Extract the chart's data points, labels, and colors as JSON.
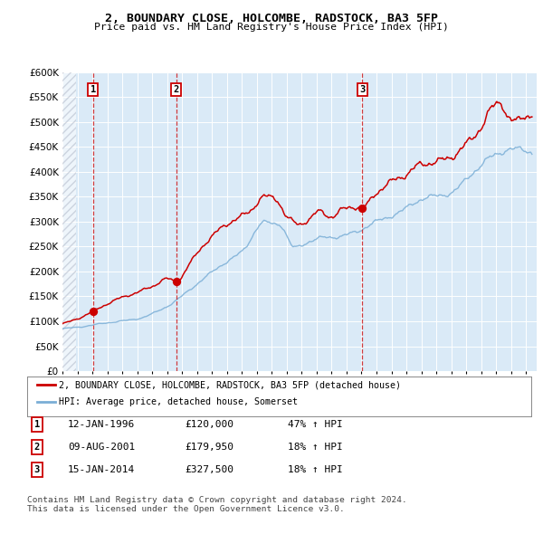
{
  "title1": "2, BOUNDARY CLOSE, HOLCOMBE, RADSTOCK, BA3 5FP",
  "title2": "Price paid vs. HM Land Registry's House Price Index (HPI)",
  "bg_color": "#daeaf7",
  "red_line_color": "#cc0000",
  "blue_line_color": "#7aaed6",
  "dashed_line_color": "#cc0000",
  "ylim": [
    0,
    600000
  ],
  "yticks": [
    0,
    50000,
    100000,
    150000,
    200000,
    250000,
    300000,
    350000,
    400000,
    450000,
    500000,
    550000,
    600000
  ],
  "xlim_start": 1994.0,
  "xlim_end": 2025.7,
  "sale_dates": [
    1996.04,
    2001.61,
    2014.04
  ],
  "sale_prices": [
    120000,
    179950,
    327500
  ],
  "sale_labels": [
    "1",
    "2",
    "3"
  ],
  "legend_entries": [
    "2, BOUNDARY CLOSE, HOLCOMBE, RADSTOCK, BA3 5FP (detached house)",
    "HPI: Average price, detached house, Somerset"
  ],
  "table_data": [
    [
      "1",
      "12-JAN-1996",
      "£120,000",
      "47% ↑ HPI"
    ],
    [
      "2",
      "09-AUG-2001",
      "£179,950",
      "18% ↑ HPI"
    ],
    [
      "3",
      "15-JAN-2014",
      "£327,500",
      "18% ↑ HPI"
    ]
  ],
  "footer": "Contains HM Land Registry data © Crown copyright and database right 2024.\nThis data is licensed under the Open Government Licence v3.0."
}
